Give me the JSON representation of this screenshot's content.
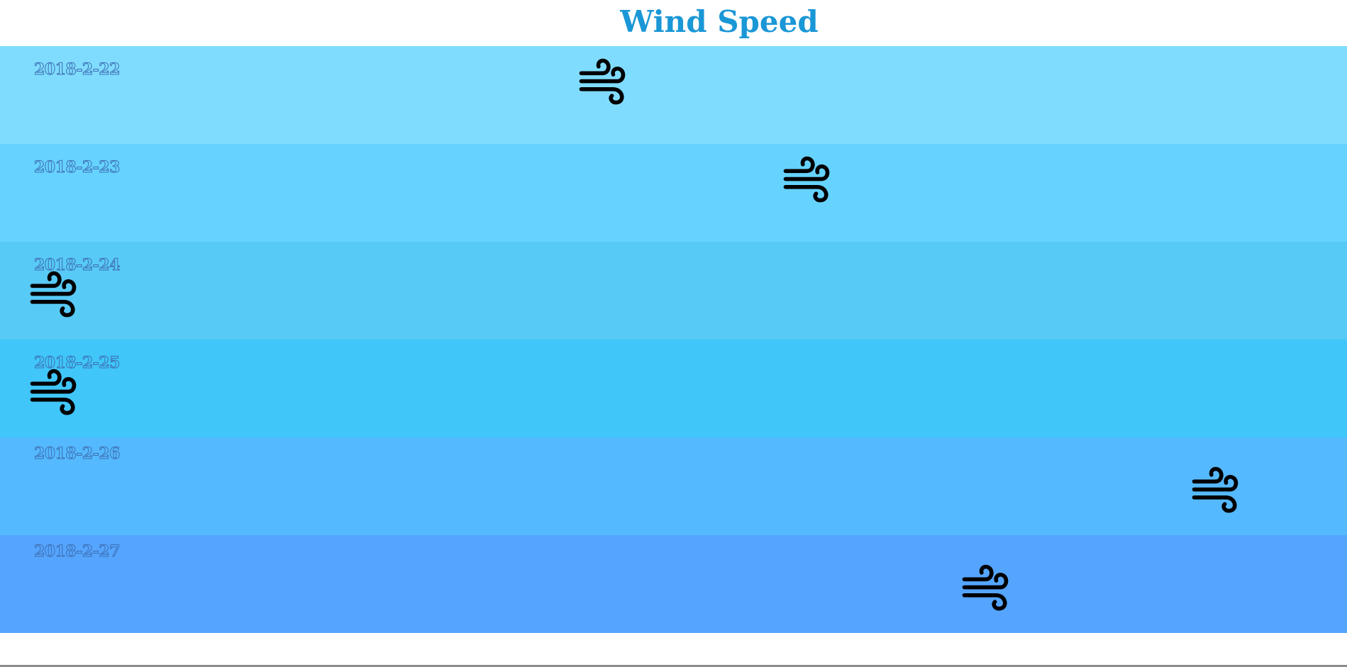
{
  "chart_data": {
    "type": "table",
    "title": "Wind Speed",
    "title_color": "#1a97d6",
    "icon": "wind-icon",
    "label_color": "#3d6fb2",
    "rows": [
      {
        "date": "2018-2-22",
        "position": 0.44,
        "color": "#7fdcff"
      },
      {
        "date": "2018-2-23",
        "position": 0.6,
        "color": "#66d3ff"
      },
      {
        "date": "2018-2-24",
        "position": 0.01,
        "color": "#58caf6"
      },
      {
        "date": "2018-2-25",
        "position": 0.01,
        "color": "#40c6f9"
      },
      {
        "date": "2018-2-26",
        "position": 0.92,
        "color": "#55b9ff"
      },
      {
        "date": "2018-2-27",
        "position": 0.74,
        "color": "#55a5ff"
      }
    ]
  }
}
